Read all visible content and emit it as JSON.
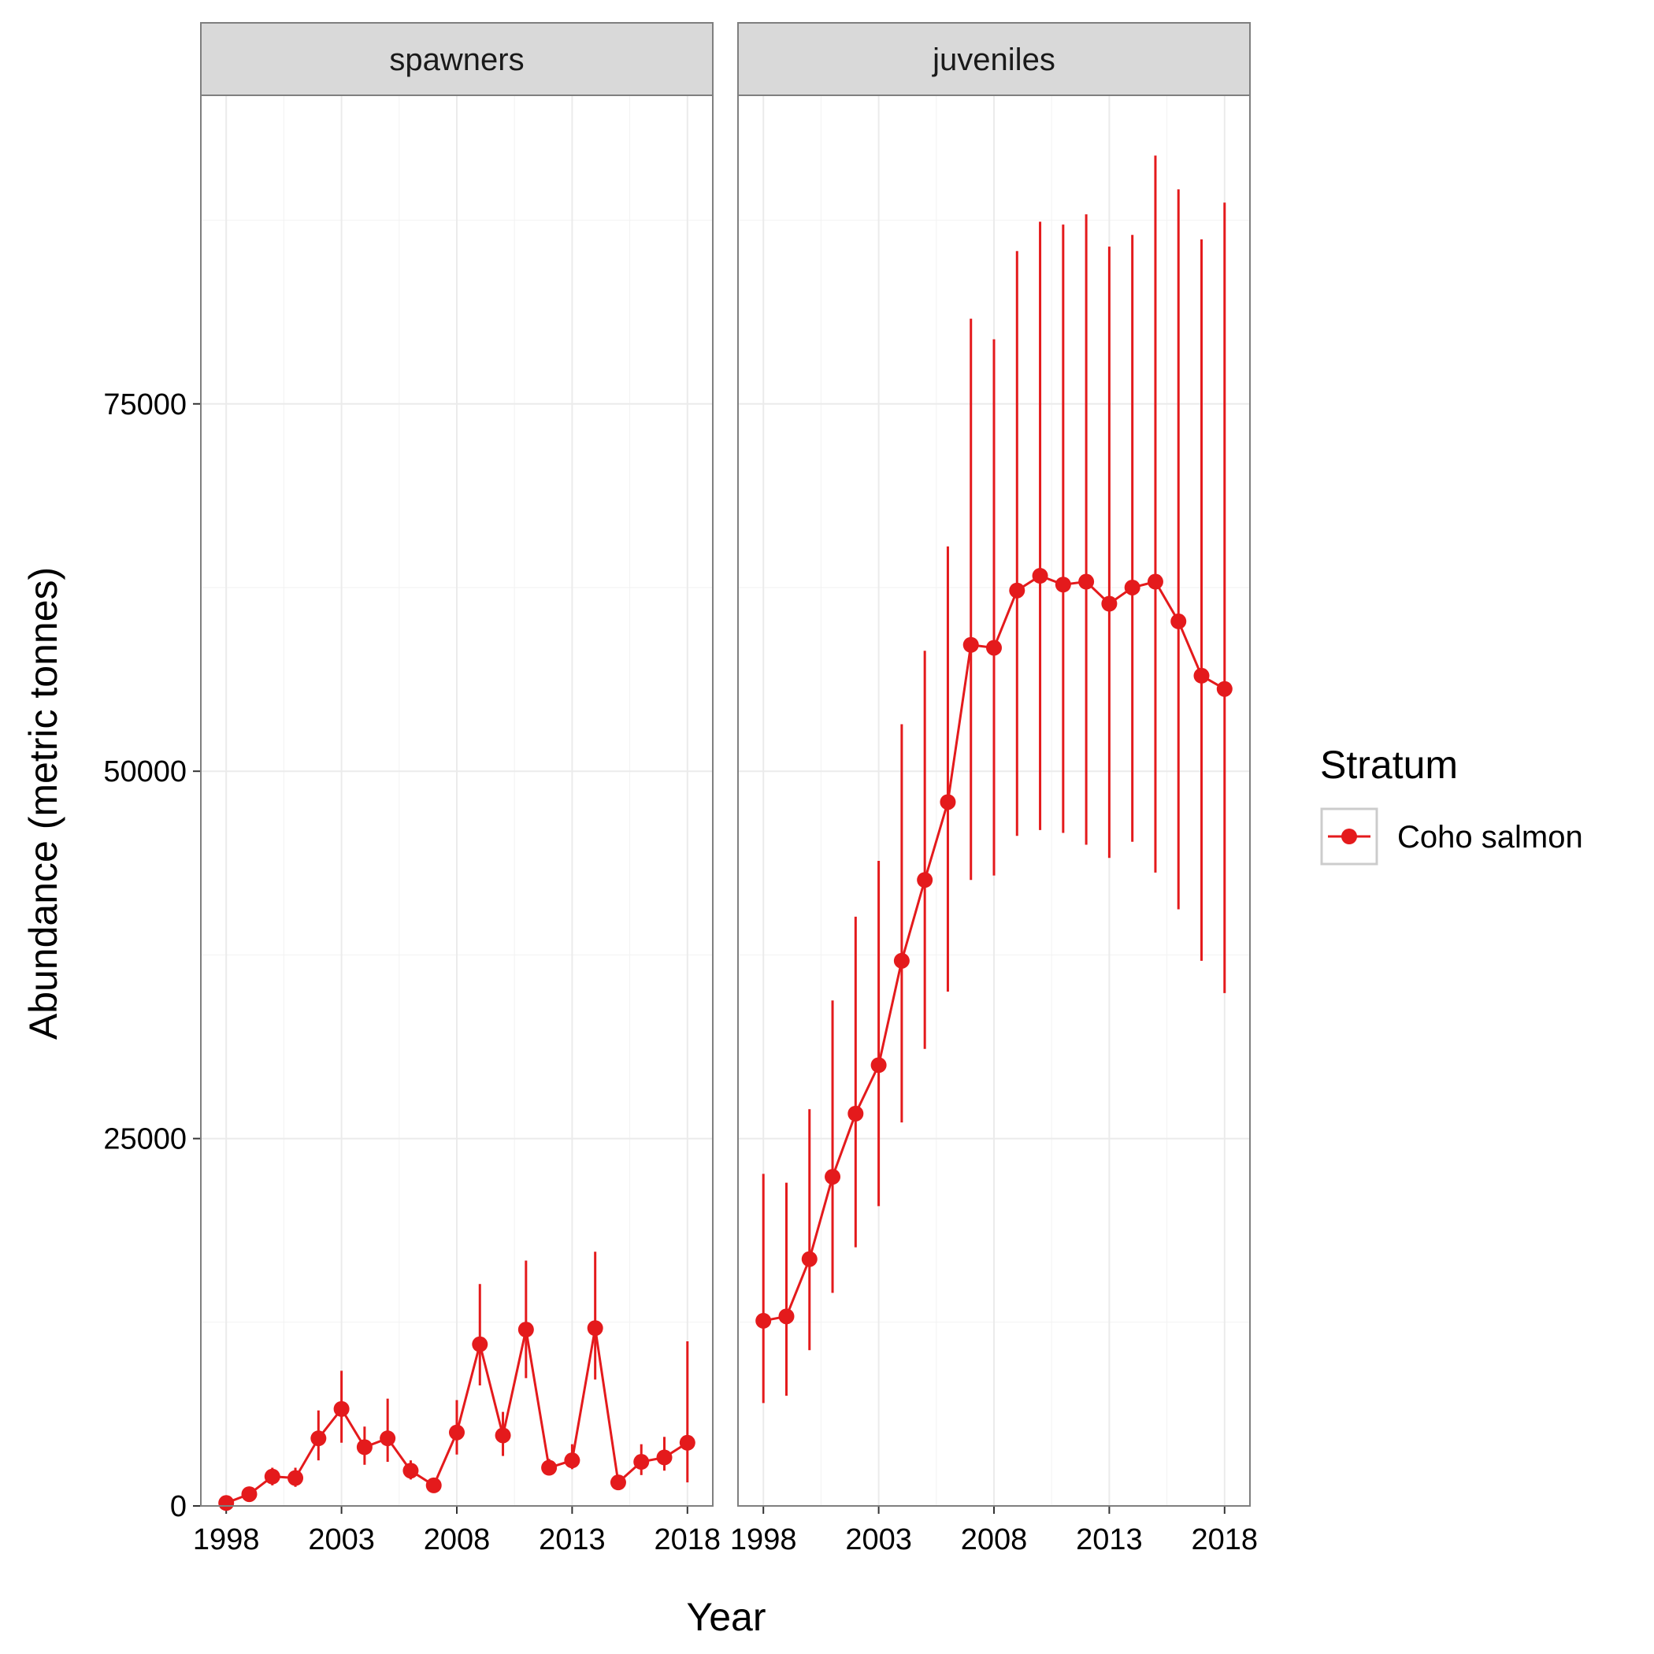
{
  "chart_data": {
    "type": "line",
    "xlabel": "Year",
    "ylabel": "Abundance (metric tonnes)",
    "ylim": [
      0,
      96000
    ],
    "xlim": [
      1996.9,
      2019.1
    ],
    "x_ticks": [
      1998,
      2003,
      2008,
      2013,
      2018
    ],
    "y_ticks": [
      0,
      25000,
      50000,
      75000
    ],
    "grid": true,
    "error_bars": true,
    "legend": {
      "title": "Stratum",
      "position": "right",
      "entries": [
        "Coho salmon"
      ]
    },
    "color": "#e41a1c",
    "panels": [
      {
        "label": "spawners",
        "series": [
          {
            "name": "Coho salmon",
            "x": [
              1998,
              1999,
              2000,
              2001,
              2002,
              2003,
              2004,
              2005,
              2006,
              2007,
              2008,
              2009,
              2010,
              2011,
              2012,
              2013,
              2014,
              2015,
              2016,
              2017,
              2018
            ],
            "y": [
              200,
              800,
              2000,
              1900,
              4600,
              6600,
              4000,
              4600,
              2400,
              1400,
              5000,
              11000,
              4800,
              12000,
              2600,
              3100,
              12100,
              1600,
              3000,
              3300,
              4300
            ],
            "lower": [
              0,
              500,
              1400,
              1300,
              3100,
              4300,
              2800,
              3000,
              1800,
              1000,
              3500,
              8200,
              3400,
              8700,
              2100,
              2500,
              8600,
              1100,
              2100,
              2400,
              1600
            ],
            "upper": [
              400,
              1100,
              2600,
              2600,
              6500,
              9200,
              5400,
              7300,
              3100,
              1900,
              7200,
              15100,
              6400,
              16700,
              3200,
              4200,
              17300,
              2100,
              4200,
              4700,
              11200
            ]
          }
        ]
      },
      {
        "label": "juveniles",
        "series": [
          {
            "name": "Coho salmon",
            "x": [
              1998,
              1999,
              2000,
              2001,
              2002,
              2003,
              2004,
              2005,
              2006,
              2007,
              2008,
              2009,
              2010,
              2011,
              2012,
              2013,
              2014,
              2015,
              2016,
              2017,
              2018
            ],
            "y": [
              12600,
              12900,
              16800,
              22400,
              26700,
              30000,
              37100,
              42600,
              47900,
              58600,
              58400,
              62300,
              63300,
              62700,
              62900,
              61400,
              62500,
              62900,
              60200,
              56500,
              55600
            ],
            "lower": [
              7000,
              7500,
              10600,
              14500,
              17600,
              20400,
              26100,
              31100,
              35000,
              42600,
              42900,
              45600,
              46000,
              45800,
              45000,
              44100,
              45200,
              43100,
              40600,
              37100,
              34900
            ],
            "upper": [
              22600,
              22000,
              27000,
              34400,
              40100,
              43900,
              53200,
              58200,
              65300,
              80800,
              79400,
              85400,
              87400,
              87200,
              87900,
              85700,
              86500,
              91900,
              89600,
              86200,
              88700
            ]
          }
        ]
      }
    ]
  }
}
